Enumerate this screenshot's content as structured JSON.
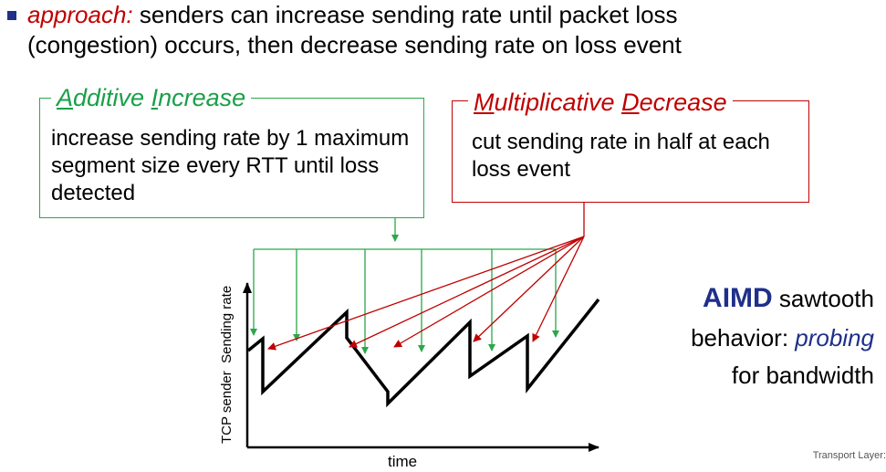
{
  "approach": {
    "label": "approach:",
    "line1_rest": " senders can increase sending rate until packet loss",
    "line2": "(congestion) occurs, then decrease sending rate on loss event"
  },
  "additive_increase": {
    "title_parts": [
      "A",
      "dditive ",
      "I",
      "ncrease"
    ],
    "text": "increase sending rate by 1 maximum segment size every RTT until loss detected"
  },
  "multiplicative_decrease": {
    "title_parts": [
      "M",
      "ultiplicative ",
      "D",
      "ecrease"
    ],
    "text": "cut sending rate in half at each loss event"
  },
  "chart": {
    "y_label": "TCP sender  Sending rate",
    "x_label": "time"
  },
  "aimd": {
    "bold": "AIMD",
    "rest1": " sawtooth",
    "line2_prefix": "behavior: ",
    "line2_italic": "probing",
    "line3": "for bandwidth"
  },
  "footer": "Transport Layer:",
  "colors": {
    "green": "#2aa84a",
    "red": "#c00000",
    "navy": "#1f2f8a"
  }
}
